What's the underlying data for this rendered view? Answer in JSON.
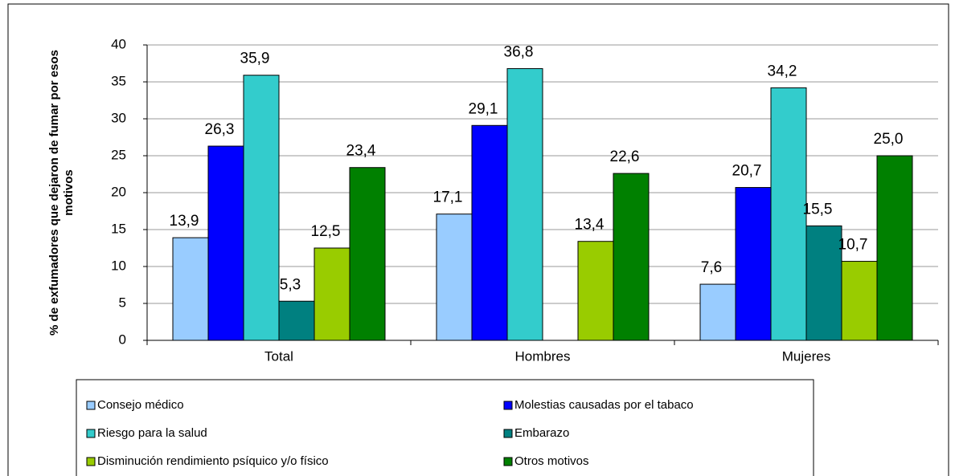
{
  "chart_data": {
    "type": "bar",
    "ylabel": [
      "% de exfumadores que dejaron de fumar por esos",
      "motivos"
    ],
    "categories": [
      "Total",
      "Hombres",
      "Mujeres"
    ],
    "series": [
      {
        "name": "Consejo médico",
        "color": "#99ccff",
        "values": [
          13.9,
          17.1,
          7.6
        ],
        "value_labels": [
          "13,9",
          "17,1",
          "7,6"
        ]
      },
      {
        "name": "Molestias causadas por el tabaco",
        "color": "#0000ff",
        "values": [
          26.3,
          29.1,
          20.7
        ],
        "value_labels": [
          "26,3",
          "29,1",
          "20,7"
        ]
      },
      {
        "name": "Riesgo para la salud",
        "color": "#33cccc",
        "values": [
          35.9,
          36.8,
          34.2
        ],
        "value_labels": [
          "35,9",
          "36,8",
          "34,2"
        ]
      },
      {
        "name": "Embarazo",
        "color": "#008080",
        "values": [
          5.3,
          null,
          15.5
        ],
        "value_labels": [
          "5,3",
          null,
          "15,5"
        ]
      },
      {
        "name": "Disminución rendimiento psíquico y/o físico",
        "color": "#99cc00",
        "values": [
          12.5,
          13.4,
          10.7
        ],
        "value_labels": [
          "12,5",
          "13,4",
          "10,7"
        ]
      },
      {
        "name": "Otros motivos",
        "color": "#008000",
        "values": [
          23.4,
          22.6,
          25.0
        ],
        "value_labels": [
          "23,4",
          "22,6",
          "25,0"
        ]
      }
    ],
    "ylim": [
      0,
      40
    ],
    "yticks": [
      0,
      5,
      10,
      15,
      20,
      25,
      30,
      35,
      40
    ],
    "grid": true
  }
}
